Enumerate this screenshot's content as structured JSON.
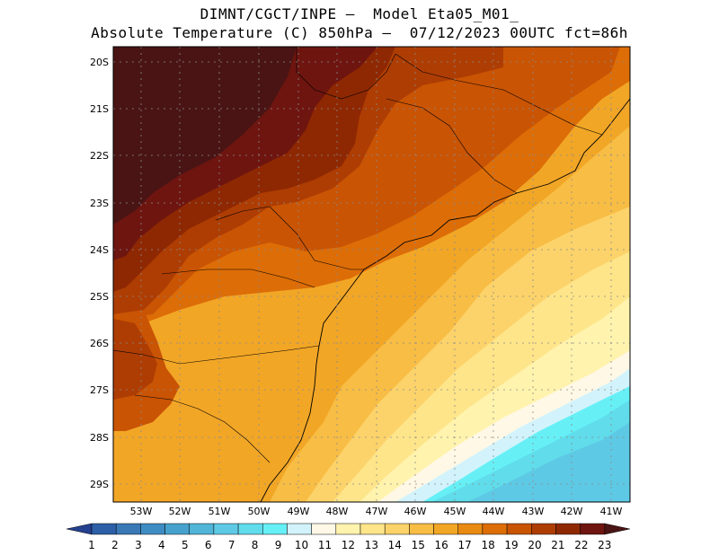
{
  "header": {
    "line1": "DIMNT/CGCT/INPE –  Model Eta05_M01_",
    "line2": "Absolute Temperature (C) 850hPa –  07/12/2023 00UTC fct=86h"
  },
  "map": {
    "lat_labels": [
      "20S",
      "21S",
      "22S",
      "23S",
      "24S",
      "25S",
      "26S",
      "27S",
      "28S",
      "29S"
    ],
    "lon_labels": [
      "53W",
      "52W",
      "51W",
      "50W",
      "49W",
      "48W",
      "47W",
      "46W",
      "45W",
      "44W",
      "43W",
      "42W",
      "41W"
    ]
  },
  "colorbar": {
    "labels": [
      "1",
      "2",
      "3",
      "4",
      "5",
      "6",
      "7",
      "8",
      "9",
      "10",
      "11",
      "12",
      "13",
      "14",
      "15",
      "16",
      "17",
      "18",
      "19",
      "20",
      "21",
      "22",
      "23"
    ],
    "colors": [
      "#24408f",
      "#2c5fa6",
      "#3a78b6",
      "#3f8cc2",
      "#46a2cd",
      "#51b5d8",
      "#5ec9e5",
      "#60dceb",
      "#66f0f6",
      "#d2f3fb",
      "#fff8e6",
      "#fff3ad",
      "#fee58a",
      "#fcd36a",
      "#f8bd45",
      "#f2a626",
      "#e98a12",
      "#dd6d07",
      "#c95404",
      "#ae3d03",
      "#8e2802",
      "#6e1510",
      "#4a1414"
    ]
  }
}
